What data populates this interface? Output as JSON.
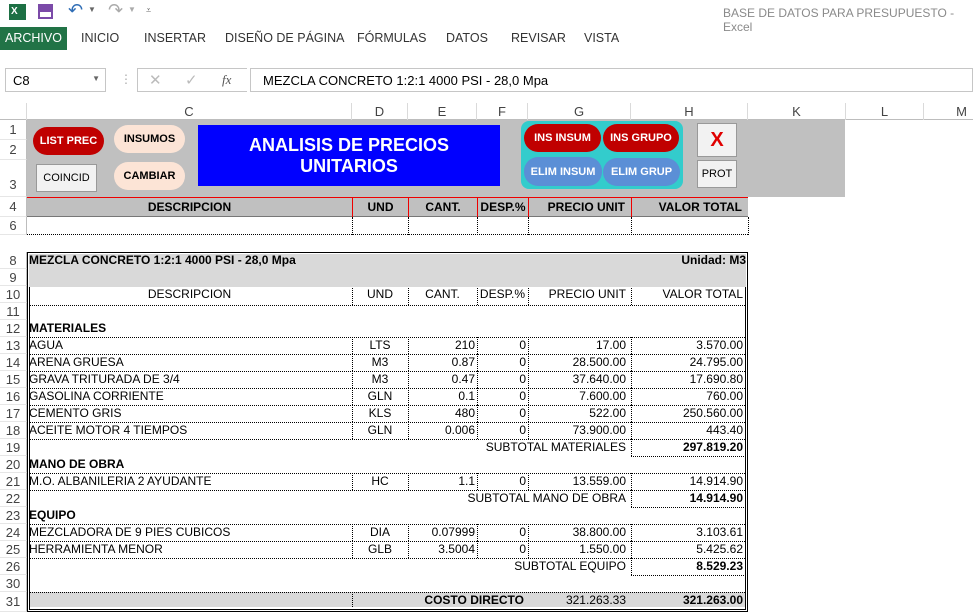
{
  "window": {
    "title": "BASE DE DATOS PARA PRESUPUESTO - Excel"
  },
  "ribbon": {
    "tabs": [
      "ARCHIVO",
      "INICIO",
      "INSERTAR",
      "DISEÑO DE PÁGINA",
      "FÓRMULAS",
      "DATOS",
      "REVISAR",
      "VISTA"
    ],
    "active": "ARCHIVO"
  },
  "formula_bar": {
    "name_box": "C8",
    "fx": "fx",
    "formula": "MEZCLA CONCRETO 1:2:1 4000 PSI - 28,0 Mpa"
  },
  "columns": [
    "C",
    "D",
    "E",
    "F",
    "G",
    "H",
    "K",
    "L",
    "M"
  ],
  "panel": {
    "title": "ANALISIS DE PRECIOS UNITARIOS",
    "buttons": {
      "list_prec": "LIST PREC",
      "insumos": "INSUMOS",
      "coincid": "COINCID",
      "cambiar": "CAMBIAR",
      "ins_insum": "INS INSUM",
      "ins_grupo": "INS GRUPO",
      "elim_insum": "ELIM INSUM",
      "elim_grup": "ELIM GRUP",
      "close": "X",
      "prot": "PROT"
    },
    "headers": [
      "DESCRIPCION",
      "UND",
      "CANT.",
      "DESP.%",
      "PRECIO UNIT",
      "VALOR TOTAL"
    ]
  },
  "analysis": {
    "item": "MEZCLA CONCRETO 1:2:1 4000 PSI - 28,0 Mpa",
    "unit": "Unidad: M3",
    "headers": [
      "DESCRIPCION",
      "UND",
      "CANT.",
      "DESP.%",
      "PRECIO UNIT",
      "VALOR TOTAL"
    ],
    "materiales": {
      "title": "MATERIALES",
      "rows": [
        [
          "AGUA",
          "LTS",
          "210",
          "0",
          "17.00",
          "3.570.00"
        ],
        [
          "ARENA GRUESA",
          "M3",
          "0.87",
          "0",
          "28.500.00",
          "24.795.00"
        ],
        [
          "GRAVA TRITURADA DE 3/4",
          "M3",
          "0.47",
          "0",
          "37.640.00",
          "17.690.80"
        ],
        [
          "GASOLINA CORRIENTE",
          "GLN",
          "0.1",
          "0",
          "7.600.00",
          "760.00"
        ],
        [
          "CEMENTO GRIS",
          "KLS",
          "480",
          "0",
          "522.00",
          "250.560.00"
        ],
        [
          "ACEITE MOTOR 4 TIEMPOS",
          "GLN",
          "0.006",
          "0",
          "73.900.00",
          "443.40"
        ]
      ],
      "subtotal_label": "SUBTOTAL MATERIALES",
      "subtotal": "297.819.20"
    },
    "mano_obra": {
      "title": "MANO DE OBRA",
      "rows": [
        [
          "M.O. ALBANILERIA 2 AYUDANTE",
          "HC",
          "1.1",
          "0",
          "13.559.00",
          "14.914.90"
        ]
      ],
      "subtotal_label": "SUBTOTAL MANO DE OBRA",
      "subtotal": "14.914.90"
    },
    "equipo": {
      "title": "EQUIPO",
      "rows": [
        [
          "MEZCLADORA DE 9 PIES CUBICOS",
          "DIA",
          "0.07999",
          "0",
          "38.800.00",
          "3.103.61"
        ],
        [
          "HERRAMIENTA MENOR",
          "GLB",
          "3.5004",
          "0",
          "1.550.00",
          "5.425.62"
        ]
      ],
      "subtotal_label": "SUBTOTAL EQUIPO",
      "subtotal": "8.529.23"
    },
    "costo_directo_label": "COSTO DIRECTO",
    "costo_directo_calc": "321.263.33",
    "costo_directo": "321.263.00"
  },
  "row_numbers": [
    "1",
    "2",
    "3",
    "4",
    "6",
    "8",
    "9",
    "10",
    "11",
    "12",
    "13",
    "14",
    "15",
    "16",
    "17",
    "18",
    "19",
    "20",
    "21",
    "22",
    "23",
    "24",
    "25",
    "26",
    "30",
    "31"
  ]
}
